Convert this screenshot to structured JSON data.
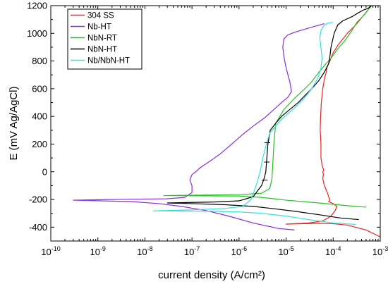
{
  "chart_data": {
    "type": "line",
    "xlabel": "current density (A/cm²)",
    "ylabel": "E (mV Ag/AgCl)",
    "x_scale": "log",
    "xlim": [
      1e-10,
      0.001
    ],
    "ylim": [
      -500,
      1200
    ],
    "x_ticks": [
      1e-10,
      1e-09,
      1e-08,
      1e-07,
      1e-06,
      1e-05,
      0.0001,
      0.001
    ],
    "x_tick_labels": [
      {
        "base": "10",
        "exp": "-10"
      },
      {
        "base": "10",
        "exp": "-9"
      },
      {
        "base": "10",
        "exp": "-8"
      },
      {
        "base": "10",
        "exp": "-7"
      },
      {
        "base": "10",
        "exp": "-6"
      },
      {
        "base": "10",
        "exp": "-5"
      },
      {
        "base": "10",
        "exp": "-4"
      },
      {
        "base": "10",
        "exp": "-3"
      }
    ],
    "y_ticks": [
      -400,
      -200,
      0,
      200,
      400,
      600,
      800,
      1000,
      1200
    ],
    "y_tick_labels": [
      "-400",
      "-200",
      "0",
      "200",
      "400",
      "600",
      "800",
      "1000",
      "1200"
    ],
    "grid": false,
    "legend_position": "top-left",
    "series": [
      {
        "name": "304 SS",
        "color": "#e8261f",
        "points": [
          [
            0.001,
            -470
          ],
          [
            0.0005,
            -420
          ],
          [
            0.0002,
            -385
          ],
          [
            0.0001,
            -375
          ],
          [
            5e-05,
            -372
          ],
          [
            1e-05,
            -378
          ],
          [
            3e-05,
            -370
          ],
          [
            6e-05,
            -355
          ],
          [
            9e-05,
            -320
          ],
          [
            0.00011,
            -280
          ],
          [
            0.00012,
            -250
          ],
          [
            0.0001,
            -230
          ],
          [
            8e-05,
            -215
          ],
          [
            8.5e-05,
            -205
          ],
          [
            7.5e-05,
            -150
          ],
          [
            6.5e-05,
            -100
          ],
          [
            6e-05,
            -50
          ],
          [
            6.2e-05,
            -20
          ],
          [
            6e-05,
            0
          ],
          [
            6.3e-05,
            10
          ],
          [
            5.8e-05,
            50
          ],
          [
            5.5e-05,
            100
          ],
          [
            5.5e-05,
            200
          ],
          [
            5.3e-05,
            300
          ],
          [
            5.4e-05,
            400
          ],
          [
            5.6e-05,
            500
          ],
          [
            6e-05,
            600
          ],
          [
            6.6e-05,
            680
          ],
          [
            7e-05,
            710
          ],
          [
            7.5e-05,
            760
          ],
          [
            8.5e-05,
            800
          ],
          [
            0.0001,
            860
          ],
          [
            0.00013,
            920
          ],
          [
            0.0002,
            1000
          ],
          [
            0.0003,
            1060
          ],
          [
            0.00042,
            1120
          ],
          [
            0.00055,
            1170
          ],
          [
            0.00065,
            1200
          ]
        ]
      },
      {
        "name": "Nb-HT",
        "color": "#8a2be2",
        "points": [
          [
            1.5e-05,
            -420
          ],
          [
            7e-06,
            -410
          ],
          [
            2e-06,
            -370
          ],
          [
            6e-07,
            -320
          ],
          [
            2e-07,
            -280
          ],
          [
            6e-08,
            -250
          ],
          [
            2e-08,
            -230
          ],
          [
            5e-09,
            -215
          ],
          [
            3e-10,
            -205
          ],
          [
            5e-09,
            -198
          ],
          [
            3e-08,
            -195
          ],
          [
            7e-08,
            -185
          ],
          [
            1e-07,
            -150
          ],
          [
            1e-07,
            -100
          ],
          [
            9e-08,
            -60
          ],
          [
            1e-07,
            -20
          ],
          [
            1.2e-07,
            0
          ],
          [
            1.5e-07,
            30
          ],
          [
            2.5e-07,
            80
          ],
          [
            4e-07,
            130
          ],
          [
            7e-07,
            200
          ],
          [
            1.2e-06,
            270
          ],
          [
            2e-06,
            330
          ],
          [
            3.5e-06,
            390
          ],
          [
            5.5e-06,
            450
          ],
          [
            8e-06,
            500
          ],
          [
            1.1e-05,
            540
          ],
          [
            1.3e-05,
            580
          ],
          [
            1.2e-05,
            650
          ],
          [
            1e-05,
            750
          ],
          [
            9e-06,
            830
          ],
          [
            8.5e-06,
            900
          ],
          [
            9e-06,
            960
          ],
          [
            1.1e-05,
            990
          ],
          [
            1.6e-05,
            1010
          ],
          [
            2.5e-05,
            1030
          ],
          [
            4e-05,
            1050
          ],
          [
            6.5e-05,
            1070
          ]
        ]
      },
      {
        "name": "NbN-RT",
        "color": "#22c422",
        "points": [
          [
            0.0005,
            -255
          ],
          [
            0.0002,
            -245
          ],
          [
            5e-05,
            -225
          ],
          [
            1e-05,
            -205
          ],
          [
            3e-06,
            -185
          ],
          [
            1e-06,
            -175
          ],
          [
            2.5e-08,
            -172
          ],
          [
            1e-06,
            -165
          ],
          [
            3e-06,
            -155
          ],
          [
            4.5e-06,
            -120
          ],
          [
            5e-06,
            -50
          ],
          [
            5.2e-06,
            50
          ],
          [
            5.5e-06,
            200
          ],
          [
            6e-06,
            350
          ],
          [
            9e-06,
            450
          ],
          [
            1.5e-05,
            530
          ],
          [
            2.5e-05,
            600
          ],
          [
            3.5e-05,
            650
          ],
          [
            5e-05,
            720
          ],
          [
            7e-05,
            780
          ],
          [
            9e-05,
            820
          ],
          [
            0.00012,
            880
          ],
          [
            0.00018,
            950
          ],
          [
            0.00025,
            1020
          ],
          [
            0.00032,
            1080
          ],
          [
            0.00045,
            1130
          ],
          [
            0.00058,
            1180
          ],
          [
            0.00065,
            1200
          ]
        ]
      },
      {
        "name": "NbN-HT",
        "color": "#000000",
        "points": [
          [
            0.00035,
            -345
          ],
          [
            0.00015,
            -335
          ],
          [
            5e-05,
            -310
          ],
          [
            1.5e-05,
            -285
          ],
          [
            5e-06,
            -265
          ],
          [
            2e-06,
            -250
          ],
          [
            5e-07,
            -238
          ],
          [
            1e-07,
            -230
          ],
          [
            3e-08,
            -225
          ],
          [
            3e-07,
            -218
          ],
          [
            1e-06,
            -210
          ],
          [
            2e-06,
            -180
          ],
          [
            3e-06,
            -100
          ],
          [
            3.4e-06,
            -50
          ],
          [
            3.7e-06,
            0
          ],
          [
            3.9e-06,
            100
          ],
          [
            4.1e-06,
            200
          ],
          [
            4.6e-06,
            300
          ],
          [
            6e-06,
            350
          ],
          [
            8e-06,
            400
          ],
          [
            1.2e-05,
            450
          ],
          [
            1.8e-05,
            500
          ],
          [
            2.5e-05,
            550
          ],
          [
            3.5e-05,
            600
          ],
          [
            5e-05,
            660
          ],
          [
            6.5e-05,
            720
          ],
          [
            8e-05,
            780
          ],
          [
            8.5e-05,
            830
          ],
          [
            9e-05,
            900
          ],
          [
            0.000105,
            1000
          ],
          [
            0.000125,
            1060
          ],
          [
            0.00016,
            1090
          ],
          [
            0.00025,
            1120
          ],
          [
            0.00035,
            1150
          ],
          [
            0.00045,
            1170
          ],
          [
            0.00055,
            1180
          ],
          [
            0.00065,
            1200
          ]
        ]
      },
      {
        "name": "Nb/NbN-HT",
        "color": "#33e0e0",
        "points": [
          [
            0.0003,
            -380
          ],
          [
            0.0001,
            -370
          ],
          [
            3e-05,
            -345
          ],
          [
            1e-05,
            -320
          ],
          [
            3e-06,
            -300
          ],
          [
            1e-06,
            -290
          ],
          [
            3e-07,
            -285
          ],
          [
            1.5e-08,
            -282
          ],
          [
            1e-07,
            -275
          ],
          [
            5e-07,
            -265
          ],
          [
            1.2e-06,
            -250
          ],
          [
            1.8e-06,
            -200
          ],
          [
            2.3e-06,
            -100
          ],
          [
            2.8e-06,
            0
          ],
          [
            3.2e-06,
            100
          ],
          [
            3.8e-06,
            200
          ],
          [
            4.5e-06,
            280
          ],
          [
            6e-06,
            330
          ],
          [
            8e-06,
            380
          ],
          [
            1.1e-05,
            420
          ],
          [
            1.6e-05,
            470
          ],
          [
            2.4e-05,
            530
          ],
          [
            3.5e-05,
            600
          ],
          [
            4.8e-05,
            680
          ],
          [
            5.5e-05,
            750
          ],
          [
            5.8e-05,
            820
          ],
          [
            5.5e-05,
            900
          ],
          [
            5.2e-05,
            970
          ],
          [
            5.5e-05,
            1020
          ],
          [
            6.5e-05,
            1060
          ],
          [
            8e-05,
            1075
          ],
          [
            0.0001,
            1080
          ]
        ]
      }
    ],
    "error_bars": [
      {
        "x": 4e-06,
        "y": 210
      },
      {
        "x": 3.9e-06,
        "y": 70
      },
      {
        "x": 3.5e-06,
        "y": -60
      }
    ]
  }
}
